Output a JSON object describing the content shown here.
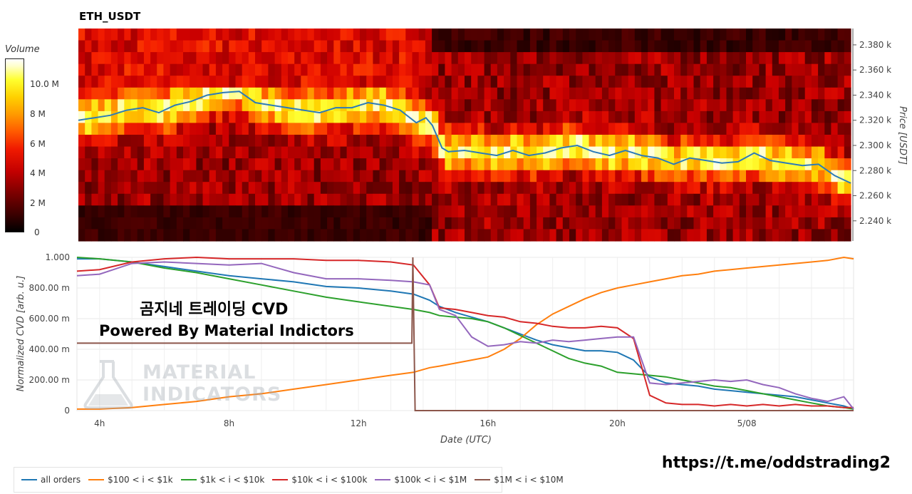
{
  "title": "ETH_USDT",
  "colorbar": {
    "title": "Volume",
    "ticks": [
      "10.0 M",
      "8 M",
      "6 M",
      "4 M",
      "2 M",
      "0"
    ]
  },
  "overlay_text": {
    "line1": "곰지네 트레이딩 CVD",
    "line2": "Powered By Material Indictors"
  },
  "watermark": {
    "line1": "MATERIAL",
    "line2": "INDICATORS"
  },
  "url": "https://t.me/oddstrading2",
  "colors": {
    "all_orders": "#1f77b4",
    "b100_1k": "#ff7f0e",
    "b1k_10k": "#2ca02c",
    "b10k_100k": "#d62728",
    "b100k_1m": "#9467bd",
    "b1m_10m": "#8c564b",
    "price_line": "#2b7bb9"
  },
  "chart_data": [
    {
      "type": "heatmap",
      "title": "ETH_USDT",
      "ylabel": "Price [USDT]",
      "y_tick_labels": [
        "2.380 k",
        "2.360 k",
        "2.340 k",
        "2.320 k",
        "2.300 k",
        "2.280 k",
        "2.260 k",
        "2.240 k"
      ],
      "y_ticks": [
        2380,
        2360,
        2340,
        2320,
        2300,
        2280,
        2260,
        2240
      ],
      "ylim": [
        2224,
        2393
      ],
      "x_hours_range": [
        3.3,
        27.3
      ],
      "colorbar_label": "Volume",
      "colorbar_range": [
        0,
        11500000
      ],
      "price_series": {
        "x_hours": [
          3.3,
          3.8,
          4.3,
          4.8,
          5.3,
          5.8,
          6.3,
          6.8,
          7.3,
          7.8,
          8.3,
          8.8,
          9.3,
          9.8,
          10.3,
          10.8,
          11.3,
          11.8,
          12.3,
          12.8,
          13.3,
          13.8,
          14.1,
          14.3,
          14.6,
          14.8,
          15.3,
          15.8,
          16.3,
          16.8,
          17.3,
          17.8,
          18.3,
          18.8,
          19.3,
          19.8,
          20.3,
          20.8,
          21.3,
          21.8,
          22.3,
          22.8,
          23.3,
          23.8,
          24.3,
          24.8,
          25.3,
          25.8,
          26.3,
          26.8,
          27.3
        ],
        "values": [
          2320,
          2322,
          2324,
          2328,
          2330,
          2326,
          2332,
          2335,
          2340,
          2342,
          2343,
          2334,
          2332,
          2330,
          2328,
          2326,
          2330,
          2330,
          2334,
          2332,
          2328,
          2318,
          2322,
          2316,
          2298,
          2295,
          2296,
          2294,
          2292,
          2296,
          2292,
          2294,
          2298,
          2300,
          2295,
          2292,
          2296,
          2292,
          2290,
          2285,
          2290,
          2288,
          2286,
          2287,
          2294,
          2288,
          2286,
          2284,
          2285,
          2276,
          2270
        ]
      }
    },
    {
      "type": "line",
      "xlabel": "Date (UTC)",
      "ylabel": "Normalized CVD [arb. u.]",
      "x_tick_labels": [
        "4h",
        "8h",
        "12h",
        "16h",
        "20h",
        "5/08"
      ],
      "x_ticks_hours": [
        4,
        8,
        12,
        16,
        20,
        24
      ],
      "y_tick_labels": [
        "1.000",
        "800.00 m",
        "600.00 m",
        "400.00 m",
        "200.00 m",
        "0"
      ],
      "y_ticks": [
        1.0,
        0.8,
        0.6,
        0.4,
        0.2,
        0
      ],
      "xlim_hours": [
        3.3,
        27.3
      ],
      "ylim": [
        0,
        1.0
      ],
      "legend_position": "bottom-left",
      "x_hours": [
        3.3,
        4,
        5,
        6,
        7,
        8,
        9,
        10,
        11,
        12,
        13,
        13.7,
        14.2,
        14.5,
        15,
        15.5,
        16,
        16.5,
        17,
        17.5,
        18,
        18.5,
        19,
        19.5,
        20,
        20.5,
        21,
        21.5,
        22,
        22.5,
        23,
        23.5,
        24,
        24.5,
        25,
        25.5,
        26,
        26.5,
        27,
        27.3
      ],
      "series": [
        {
          "name": "all orders",
          "values": [
            0.99,
            0.99,
            0.97,
            0.94,
            0.91,
            0.88,
            0.86,
            0.84,
            0.81,
            0.8,
            0.78,
            0.76,
            0.72,
            0.68,
            0.64,
            0.61,
            0.58,
            0.54,
            0.5,
            0.46,
            0.43,
            0.41,
            0.39,
            0.39,
            0.38,
            0.33,
            0.22,
            0.18,
            0.17,
            0.16,
            0.14,
            0.13,
            0.12,
            0.11,
            0.1,
            0.09,
            0.07,
            0.05,
            0.03,
            0.01
          ]
        },
        {
          "name": "$100 < i < $1k",
          "values": [
            0.01,
            0.01,
            0.02,
            0.04,
            0.06,
            0.09,
            0.11,
            0.14,
            0.17,
            0.2,
            0.23,
            0.25,
            0.28,
            0.29,
            0.31,
            0.33,
            0.35,
            0.4,
            0.47,
            0.56,
            0.63,
            0.68,
            0.73,
            0.77,
            0.8,
            0.82,
            0.84,
            0.86,
            0.88,
            0.89,
            0.91,
            0.92,
            0.93,
            0.94,
            0.95,
            0.96,
            0.97,
            0.98,
            1.0,
            0.99
          ]
        },
        {
          "name": "$1k < i < $10k",
          "values": [
            1.0,
            0.99,
            0.97,
            0.93,
            0.9,
            0.86,
            0.82,
            0.78,
            0.74,
            0.71,
            0.68,
            0.66,
            0.64,
            0.62,
            0.61,
            0.6,
            0.58,
            0.54,
            0.49,
            0.44,
            0.39,
            0.34,
            0.31,
            0.29,
            0.25,
            0.24,
            0.23,
            0.22,
            0.2,
            0.18,
            0.16,
            0.15,
            0.13,
            0.11,
            0.09,
            0.07,
            0.05,
            0.03,
            0.02,
            0.01
          ]
        },
        {
          "name": "$10k < i < $100k",
          "values": [
            0.91,
            0.92,
            0.97,
            0.99,
            1.0,
            0.99,
            0.99,
            0.99,
            0.98,
            0.98,
            0.97,
            0.95,
            0.82,
            0.67,
            0.66,
            0.64,
            0.62,
            0.61,
            0.58,
            0.57,
            0.55,
            0.54,
            0.54,
            0.55,
            0.54,
            0.47,
            0.1,
            0.05,
            0.04,
            0.04,
            0.03,
            0.04,
            0.03,
            0.04,
            0.03,
            0.04,
            0.03,
            0.03,
            0.02,
            0.02
          ]
        },
        {
          "name": "$100k < i < $1M",
          "values": [
            0.88,
            0.89,
            0.96,
            0.97,
            0.96,
            0.95,
            0.96,
            0.9,
            0.86,
            0.86,
            0.85,
            0.84,
            0.82,
            0.66,
            0.62,
            0.48,
            0.42,
            0.43,
            0.45,
            0.44,
            0.46,
            0.45,
            0.46,
            0.47,
            0.48,
            0.48,
            0.18,
            0.17,
            0.18,
            0.19,
            0.2,
            0.19,
            0.2,
            0.17,
            0.15,
            0.11,
            0.08,
            0.06,
            0.09,
            0.01
          ]
        },
        {
          "name": "$1M < i < $10M",
          "values": [
            0.44,
            0.44,
            0.44,
            0.44,
            0.44,
            0.44,
            0.44,
            0.44,
            0.44,
            0.44,
            0.44,
            0.44,
            0.0,
            0.0,
            0.0,
            0.0,
            0.0,
            0.0,
            0.0,
            0.0,
            0.0,
            0.0,
            0.0,
            0.0,
            0.0,
            0.0,
            0.0,
            0.0,
            0.0,
            0.0,
            0.0,
            0.0,
            0.0,
            0.0,
            0.0,
            0.0,
            0.0,
            0.0,
            0.0,
            0.0
          ]
        }
      ]
    }
  ]
}
